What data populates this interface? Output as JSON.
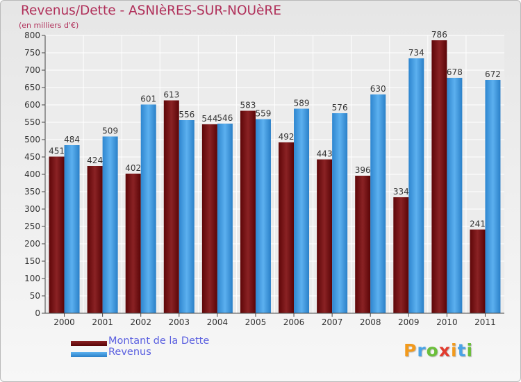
{
  "header": {
    "title": "Revenus/Dette - ASNIèRES-SUR-NOUèRE",
    "subtitle": "(en milliers d'€)"
  },
  "legend": [
    {
      "label": "Montant de la Dette",
      "color": "#7a1518"
    },
    {
      "label": "Revenus",
      "color": "#4aa3e6"
    }
  ],
  "logo": {
    "text": "Proxiti"
  },
  "chart_data": {
    "type": "bar",
    "categories": [
      "2000",
      "2001",
      "2002",
      "2003",
      "2004",
      "2005",
      "2006",
      "2007",
      "2008",
      "2009",
      "2010",
      "2011"
    ],
    "series": [
      {
        "name": "Montant de la Dette",
        "color": "#7a1518",
        "values": [
          451,
          424,
          402,
          613,
          544,
          583,
          492,
          443,
          396,
          334,
          786,
          241
        ]
      },
      {
        "name": "Revenus",
        "color": "#4aa3e6",
        "values": [
          484,
          509,
          601,
          556,
          546,
          559,
          589,
          576,
          630,
          734,
          678,
          672
        ]
      }
    ],
    "yticks": [
      0,
      50,
      100,
      150,
      200,
      250,
      300,
      350,
      400,
      450,
      500,
      550,
      600,
      650,
      700,
      750,
      800
    ],
    "ylim": [
      0,
      800
    ],
    "grid": true,
    "legend_position": "bottom-left"
  }
}
